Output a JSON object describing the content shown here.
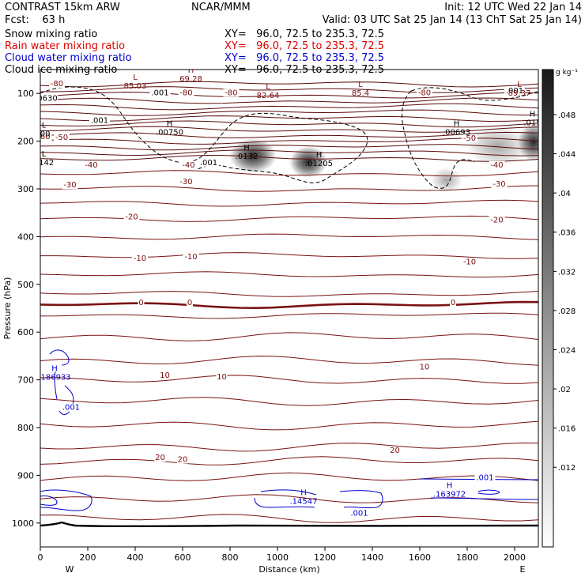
{
  "header": {
    "left_line1": "CONTRAST 15km ARW",
    "left_line2": "Fcst:    63 h",
    "center_line1": "NCAR/MMM",
    "init": "Init: 12 UTC Wed 22 Jan 14",
    "valid": "Valid: 03 UTC Sat 25 Jan 14 (13 ChT Sat 25 Jan 14)"
  },
  "fields": [
    {
      "label": "Snow mixing ratio",
      "xy": "XY=   96.0, 72.5 to 235.3, 72.5",
      "color": "#000000"
    },
    {
      "label": "Rain water mixing ratio",
      "xy": "XY=   96.0, 72.5 to 235.3, 72.5",
      "color": "#e00000"
    },
    {
      "label": "Cloud water mixing ratio",
      "xy": "XY=   96.0, 72.5 to 235.3, 72.5",
      "color": "#0000cc"
    },
    {
      "label": "Cloud ice mixing ratio",
      "xy": "XY=   96.0, 72.5 to 235.3, 72.5",
      "color": "#000000"
    }
  ],
  "colorbar": {
    "unit": "g kg⁻¹",
    "ticks": [
      ".048",
      ".044",
      ".04",
      ".036",
      ".032",
      ".028",
      ".024",
      ".02",
      ".016",
      ".012"
    ]
  },
  "chart_data": {
    "type": "contour",
    "xlabel": "Distance (km)",
    "ylabel": "Pressure (hPa)",
    "xlim": [
      0,
      2100
    ],
    "ylim": [
      1050,
      50
    ],
    "x_ticks": [
      "0",
      "200",
      "400",
      "600",
      "800",
      "1000",
      "1200",
      "1400",
      "1600",
      "1800",
      "2000"
    ],
    "y_ticks": [
      "100",
      "200",
      "300",
      "400",
      "500",
      "600",
      "700",
      "800",
      "900",
      "1000"
    ],
    "x_end_labels": {
      "left": "W",
      "right": "E"
    },
    "temperature_contour_labels": [
      {
        "text": "-80",
        "x": 70,
        "p": 85
      },
      {
        "text": "-80",
        "x": 615,
        "p": 104
      },
      {
        "text": "-80",
        "x": 805,
        "p": 104
      },
      {
        "text": "-80",
        "x": 1620,
        "p": 104
      },
      {
        "text": "-60",
        "x": 15,
        "p": 196
      },
      {
        "text": "-50",
        "x": 90,
        "p": 197
      },
      {
        "text": "-50",
        "x": 1810,
        "p": 199
      },
      {
        "text": "-40",
        "x": 215,
        "p": 255
      },
      {
        "text": "-40",
        "x": 625,
        "p": 255
      },
      {
        "text": "-40",
        "x": 1925,
        "p": 255
      },
      {
        "text": "-30",
        "x": 125,
        "p": 297
      },
      {
        "text": "-30",
        "x": 615,
        "p": 290
      },
      {
        "text": "-30",
        "x": 1935,
        "p": 295
      },
      {
        "text": "-20",
        "x": 385,
        "p": 364
      },
      {
        "text": "-20",
        "x": 1925,
        "p": 370
      },
      {
        "text": "-10",
        "x": 420,
        "p": 451
      },
      {
        "text": "-10",
        "x": 635,
        "p": 447
      },
      {
        "text": "-10",
        "x": 1810,
        "p": 458
      },
      {
        "text": "0",
        "x": 425,
        "p": 543
      },
      {
        "text": "0",
        "x": 630,
        "p": 543
      },
      {
        "text": "0",
        "x": 1740,
        "p": 543
      },
      {
        "text": "10",
        "x": 525,
        "p": 696
      },
      {
        "text": "10",
        "x": 765,
        "p": 699
      },
      {
        "text": "10",
        "x": 1620,
        "p": 678
      },
      {
        "text": "20",
        "x": 505,
        "p": 868
      },
      {
        "text": "20",
        "x": 600,
        "p": 872
      },
      {
        "text": "20",
        "x": 1495,
        "p": 853
      }
    ],
    "extrema_labels": [
      {
        "kind": "H",
        "value": "69.28",
        "x": 635,
        "p": 75,
        "color": "#7a0c0c"
      },
      {
        "kind": "L",
        "value": "85.03",
        "x": 400,
        "p": 90,
        "color": "#7a0c0c"
      },
      {
        "kind": "L",
        "value": "82.64",
        "x": 960,
        "p": 110,
        "color": "#7a0c0c"
      },
      {
        "kind": "L",
        "value": "85.4",
        "x": 1350,
        "p": 105,
        "color": "#7a0c0c"
      },
      {
        "kind": "L",
        "value": "89.37",
        "x": 2020,
        "p": 105,
        "color": "#7a0c0c"
      },
      {
        "kind": "H",
        "value": ".00750",
        "x": 545,
        "p": 187,
        "color": "#000000"
      },
      {
        "kind": "H",
        "value": ".0132",
        "x": 870,
        "p": 237,
        "color": "#000000"
      },
      {
        "kind": "H",
        "value": ".01205",
        "x": 1175,
        "p": 252,
        "color": "#000000"
      },
      {
        "kind": "H",
        "value": ".00693",
        "x": 1755,
        "p": 187,
        "color": "#000000"
      },
      {
        "kind": "H",
        "value": ".015",
        "x": 2075,
        "p": 167,
        "color": "#000000"
      },
      {
        "kind": "L",
        "value": ".00",
        "x": 15,
        "p": 190,
        "color": "#000000"
      },
      {
        "kind": "L",
        "value": "0142",
        "x": 15,
        "p": 250,
        "color": "#000000"
      },
      {
        "kind": "H",
        "value": ".186933",
        "x": 60,
        "p": 700,
        "color": "#0000cc"
      },
      {
        "kind": "H",
        "value": ".14547",
        "x": 1110,
        "p": 960,
        "color": "#0000cc"
      },
      {
        "kind": "H",
        "value": ".163972",
        "x": 1725,
        "p": 945,
        "color": "#0000cc"
      }
    ],
    "small_contour_labels": [
      {
        "text": "0630",
        "x": 30,
        "p": 115,
        "color": "#000000"
      },
      {
        "text": ".001",
        "x": 505,
        "p": 104,
        "color": "#000000"
      },
      {
        "text": ".001",
        "x": 2000,
        "p": 100,
        "color": "#000000"
      },
      {
        "text": ".001",
        "x": 250,
        "p": 162,
        "color": "#000000"
      },
      {
        "text": ".001",
        "x": 710,
        "p": 250,
        "color": "#000000"
      },
      {
        "text": ".001",
        "x": 130,
        "p": 763,
        "color": "#0000cc"
      },
      {
        "text": ".001",
        "x": 1345,
        "p": 985,
        "color": "#0000cc"
      },
      {
        "text": ".001",
        "x": 1875,
        "p": 910,
        "color": "#0000cc"
      }
    ],
    "grid": false
  }
}
